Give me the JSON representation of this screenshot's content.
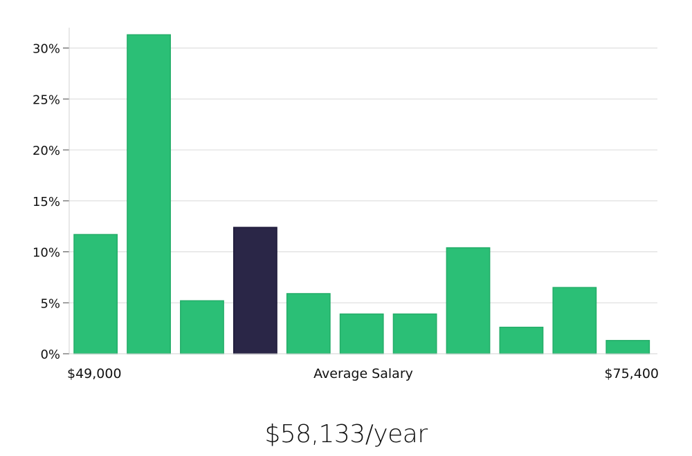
{
  "chart_data": {
    "type": "bar",
    "xlabel": "Average Salary",
    "x_min_label": "$49,000",
    "x_max_label": "$75,400",
    "ylim": [
      0,
      32
    ],
    "yticks": [
      0,
      5,
      10,
      15,
      20,
      25,
      30
    ],
    "ytick_labels": [
      "0%",
      "5%",
      "10%",
      "15%",
      "20%",
      "25%",
      "30%"
    ],
    "values": [
      11.7,
      31.3,
      5.2,
      12.4,
      5.9,
      3.9,
      3.9,
      10.4,
      2.6,
      6.5,
      1.3
    ],
    "highlight_index": 3,
    "colors": {
      "bar": "#2bbf76",
      "bar_stroke": "#23ad68",
      "highlight": "#2a2647",
      "grid": "#d8d8d8",
      "axis": "#d0d0d0"
    },
    "grid": true
  },
  "summary": {
    "salary_text": "$58,133/year"
  }
}
